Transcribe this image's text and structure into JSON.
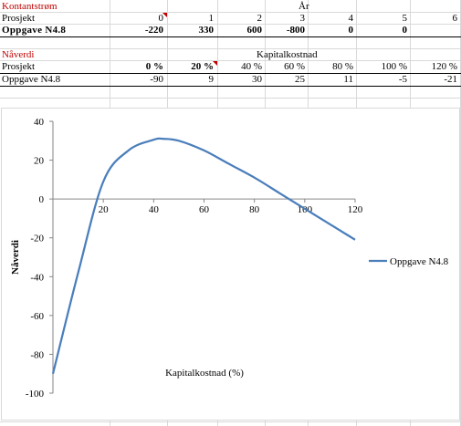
{
  "sheet": {
    "section1": {
      "title": "Kontantstrøm",
      "header_label": "År",
      "row_label_header": "Prosjekt",
      "years": [
        "0",
        "1",
        "2",
        "3",
        "4",
        "5",
        "6"
      ],
      "row": {
        "label": "Oppgave N4.8",
        "values": [
          "-220",
          "330",
          "600",
          "-800",
          "0",
          "0",
          ""
        ]
      }
    },
    "section2": {
      "title": "Nåverdi",
      "header_label": "Kapitalkostnad",
      "row_label_header": "Prosjekt",
      "rates": [
        "0 %",
        "20 %",
        "40 %",
        "60 %",
        "80 %",
        "100 %",
        "120 %"
      ],
      "row": {
        "label": "Oppgave N4.8",
        "values": [
          "-90",
          "9",
          "30",
          "25",
          "11",
          "-5",
          "-21"
        ]
      }
    }
  },
  "chart_data": {
    "type": "line",
    "xlabel": "Kapitalkostnad  (%)",
    "ylabel": "Nåverdi",
    "xlim": [
      0,
      120
    ],
    "ylim": [
      -100,
      40
    ],
    "xticks": [
      20,
      40,
      60,
      80,
      100,
      120
    ],
    "yticks": [
      40,
      20,
      0,
      -20,
      -40,
      -60,
      -80,
      -100
    ],
    "legend_position": "right",
    "series": [
      {
        "name": "Oppgave N4.8",
        "color": "#4a7ebb",
        "x": [
          0,
          10,
          20,
          30,
          40,
          44,
          50,
          60,
          70,
          80,
          90,
          100,
          110,
          120
        ],
        "y": [
          -90,
          -38,
          9,
          25,
          30.5,
          31,
          30,
          25,
          18,
          11,
          3,
          -5,
          -13,
          -21
        ]
      }
    ]
  }
}
